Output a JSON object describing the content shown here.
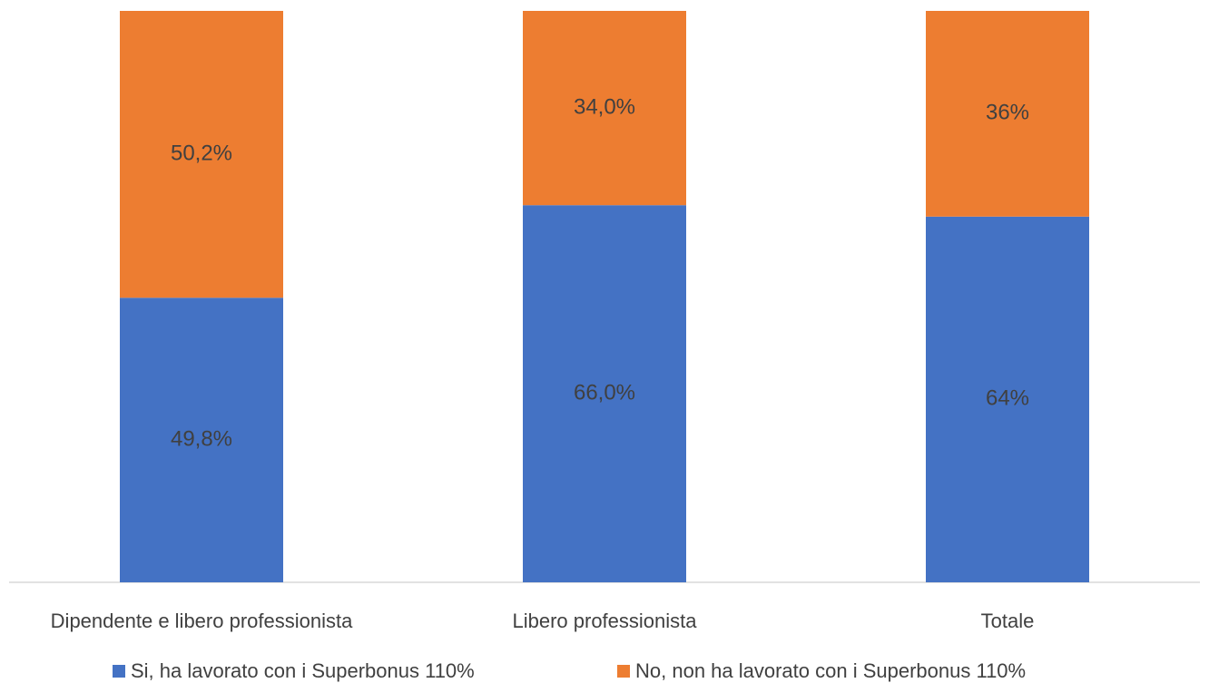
{
  "chart_data": {
    "type": "bar",
    "stacked": true,
    "percent_stacked": true,
    "categories": [
      "Dipendente e libero professionista",
      "Libero professionista",
      "Totale"
    ],
    "series": [
      {
        "name": "Si, ha lavorato con i Superbonus 110%",
        "color": "#4472C4",
        "values": [
          49.8,
          66.0,
          64
        ],
        "labels": [
          "49,8%",
          "66,0%",
          "64%"
        ]
      },
      {
        "name": "No, non ha lavorato con i Superbonus 110%",
        "color": "#ED7D31",
        "values": [
          50.2,
          34.0,
          36
        ],
        "labels": [
          "50,2%",
          "34,0%",
          "36%"
        ]
      }
    ],
    "ylim": [
      0,
      100
    ],
    "grid": false,
    "legend_position": "bottom"
  }
}
